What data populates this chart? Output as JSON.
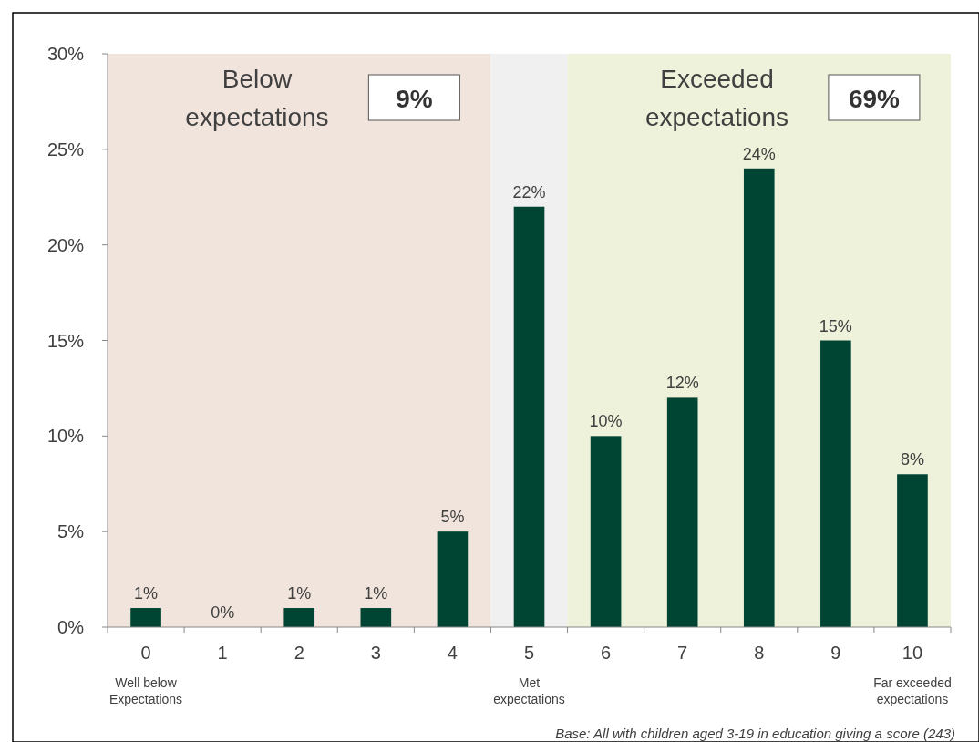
{
  "chart_data": {
    "type": "bar",
    "categories": [
      "0\nWell below\nExpectations",
      "1",
      "2",
      "3",
      "4",
      "5\nMet\nexpectations",
      "6",
      "7",
      "8",
      "9",
      "10\nFar exceeded\nexpectations"
    ],
    "values": [
      1,
      0,
      1,
      1,
      5,
      22,
      10,
      12,
      24,
      15,
      8
    ],
    "value_labels": [
      "1%",
      "0%",
      "1%",
      "1%",
      "5%",
      "22%",
      "10%",
      "12%",
      "24%",
      "15%",
      "8%"
    ],
    "color": "#004433",
    "ylim": [
      0,
      30
    ],
    "yticks": [
      {
        "value": 0,
        "label": "0%"
      },
      {
        "value": 5,
        "label": "5%"
      },
      {
        "value": 10,
        "label": "10%"
      },
      {
        "value": 15,
        "label": "15%"
      },
      {
        "value": 20,
        "label": "20%"
      },
      {
        "value": 25,
        "label": "25%"
      },
      {
        "value": 30,
        "label": "30%"
      }
    ],
    "bands": [
      {
        "axis": "x",
        "from": "0\nWell below\nExpectations",
        "to": "4",
        "label": "Below expectations",
        "color": "#f1e4dc"
      },
      {
        "axis": "x",
        "from": "5\nMet\nexpectations",
        "to": "5\nMet\nexpectations",
        "color": "#f0f0f0"
      },
      {
        "axis": "x",
        "from": "6",
        "to": "10\nFar exceeded\nexpectations",
        "label": "Exceeded expectations",
        "color": "#eef2da"
      }
    ],
    "annotations": [
      "9%",
      "69%",
      "Base: All with children aged 3-19 in education giving a score (243)"
    ]
  }
}
